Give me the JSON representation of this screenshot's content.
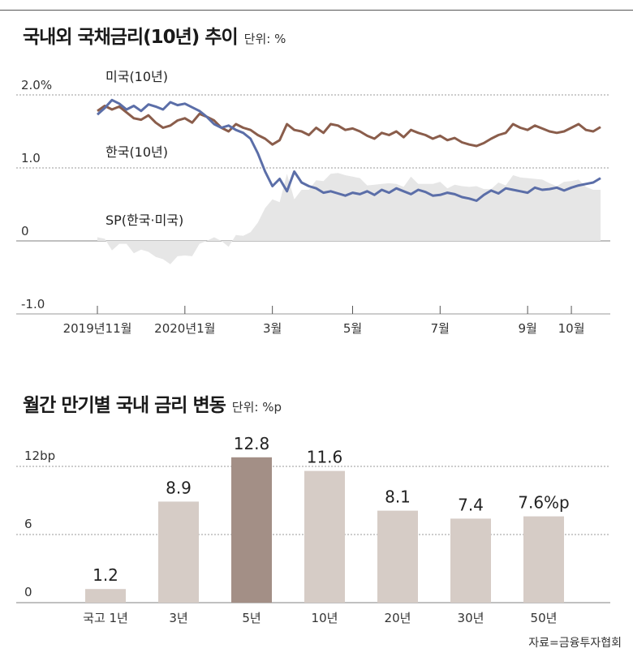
{
  "chart_data": [
    {
      "type": "line",
      "title": "국내외 국채금리(10년) 추이",
      "unit": "단위: %",
      "ylim": [
        -1.0,
        2.0
      ],
      "y_ticks": [
        {
          "value": 2.0,
          "label": "2.0%"
        },
        {
          "value": 1.0,
          "label": "1.0"
        },
        {
          "value": 0,
          "label": "0"
        },
        {
          "value": -1.0,
          "label": "-1.0"
        }
      ],
      "x_ticks": [
        {
          "t": 0,
          "label": "2019년11월"
        },
        {
          "t": 12,
          "label": "2020년1월"
        },
        {
          "t": 24,
          "label": "3월"
        },
        {
          "t": 35,
          "label": "5월"
        },
        {
          "t": 47,
          "label": "7월"
        },
        {
          "t": 59,
          "label": "9월"
        },
        {
          "t": 65,
          "label": "10월"
        }
      ],
      "series_labels": {
        "us": "미국(10년)",
        "kr": "한국(10년)",
        "sp": "SP(한국·미국)"
      },
      "colors": {
        "us": "#5b6ea8",
        "kr": "#8a5d4b",
        "sp": "#e6e6e6",
        "grid": "#9a9a9a"
      },
      "t": [
        0,
        1,
        2,
        3,
        4,
        5,
        6,
        7,
        8,
        9,
        10,
        11,
        12,
        13,
        14,
        15,
        16,
        17,
        18,
        19,
        20,
        21,
        22,
        23,
        24,
        25,
        26,
        27,
        28,
        29,
        30,
        31,
        32,
        33,
        34,
        35,
        36,
        37,
        38,
        39,
        40,
        41,
        42,
        43,
        44,
        45,
        46,
        47,
        48,
        49,
        50,
        51,
        52,
        53,
        54,
        55,
        56,
        57,
        58,
        59,
        60,
        61,
        62,
        63,
        64,
        65,
        66,
        67,
        68,
        69
      ],
      "series": [
        {
          "name": "미국(10년)",
          "key": "us",
          "values": [
            1.73,
            1.82,
            1.93,
            1.88,
            1.8,
            1.85,
            1.78,
            1.87,
            1.84,
            1.8,
            1.9,
            1.86,
            1.88,
            1.83,
            1.78,
            1.7,
            1.6,
            1.55,
            1.58,
            1.52,
            1.48,
            1.4,
            1.2,
            0.95,
            0.75,
            0.85,
            0.68,
            0.95,
            0.8,
            0.75,
            0.72,
            0.66,
            0.68,
            0.65,
            0.62,
            0.66,
            0.64,
            0.68,
            0.63,
            0.7,
            0.66,
            0.72,
            0.68,
            0.64,
            0.7,
            0.67,
            0.62,
            0.63,
            0.66,
            0.64,
            0.6,
            0.58,
            0.55,
            0.63,
            0.69,
            0.65,
            0.72,
            0.7,
            0.68,
            0.66,
            0.73,
            0.7,
            0.71,
            0.73,
            0.69,
            0.73,
            0.76,
            0.78,
            0.8,
            0.86
          ]
        },
        {
          "name": "한국(10년)",
          "key": "kr",
          "values": [
            1.78,
            1.85,
            1.8,
            1.84,
            1.76,
            1.68,
            1.66,
            1.72,
            1.62,
            1.55,
            1.58,
            1.65,
            1.68,
            1.62,
            1.74,
            1.7,
            1.65,
            1.55,
            1.5,
            1.6,
            1.55,
            1.52,
            1.45,
            1.4,
            1.32,
            1.38,
            1.6,
            1.52,
            1.5,
            1.45,
            1.55,
            1.48,
            1.6,
            1.58,
            1.52,
            1.54,
            1.5,
            1.44,
            1.4,
            1.48,
            1.45,
            1.5,
            1.42,
            1.52,
            1.48,
            1.45,
            1.4,
            1.44,
            1.38,
            1.41,
            1.35,
            1.32,
            1.3,
            1.34,
            1.4,
            1.45,
            1.48,
            1.6,
            1.55,
            1.52,
            1.58,
            1.54,
            1.5,
            1.48,
            1.5,
            1.55,
            1.6,
            1.52,
            1.5,
            1.56
          ]
        },
        {
          "name": "SP(한국·미국)",
          "key": "sp",
          "values": [
            0.05,
            0.03,
            -0.13,
            -0.04,
            -0.04,
            -0.17,
            -0.12,
            -0.15,
            -0.22,
            -0.25,
            -0.32,
            -0.21,
            -0.2,
            -0.21,
            -0.04,
            0.0,
            0.05,
            0.0,
            -0.08,
            0.08,
            0.07,
            0.12,
            0.25,
            0.45,
            0.57,
            0.53,
            0.92,
            0.57,
            0.7,
            0.7,
            0.83,
            0.82,
            0.92,
            0.93,
            0.9,
            0.88,
            0.86,
            0.76,
            0.77,
            0.78,
            0.79,
            0.78,
            0.74,
            0.88,
            0.78,
            0.78,
            0.78,
            0.81,
            0.72,
            0.77,
            0.75,
            0.74,
            0.75,
            0.71,
            0.71,
            0.8,
            0.76,
            0.9,
            0.87,
            0.86,
            0.85,
            0.84,
            0.79,
            0.75,
            0.81,
            0.82,
            0.84,
            0.74,
            0.7,
            0.7
          ]
        }
      ]
    },
    {
      "type": "bar",
      "title": "월간 만기별 국내 금리 변동",
      "unit": "단위: %p",
      "categories": [
        "국고 1년",
        "3년",
        "5년",
        "10년",
        "20년",
        "30년",
        "50년"
      ],
      "values": [
        1.2,
        8.9,
        12.8,
        11.6,
        8.1,
        7.4,
        7.6
      ],
      "value_labels": [
        "1.2",
        "8.9",
        "12.8",
        "11.6",
        "8.1",
        "7.4",
        "7.6%p"
      ],
      "highlight_index": 2,
      "ylim": [
        0,
        12
      ],
      "y_ticks": [
        {
          "value": 12,
          "label": "12bp"
        },
        {
          "value": 6,
          "label": "6"
        },
        {
          "value": 0,
          "label": "0"
        }
      ],
      "colors": {
        "bar": "#d6ccc6",
        "highlight": "#a38f86",
        "grid": "#9a9a9a"
      }
    }
  ],
  "source": "자료=금융투자협회"
}
